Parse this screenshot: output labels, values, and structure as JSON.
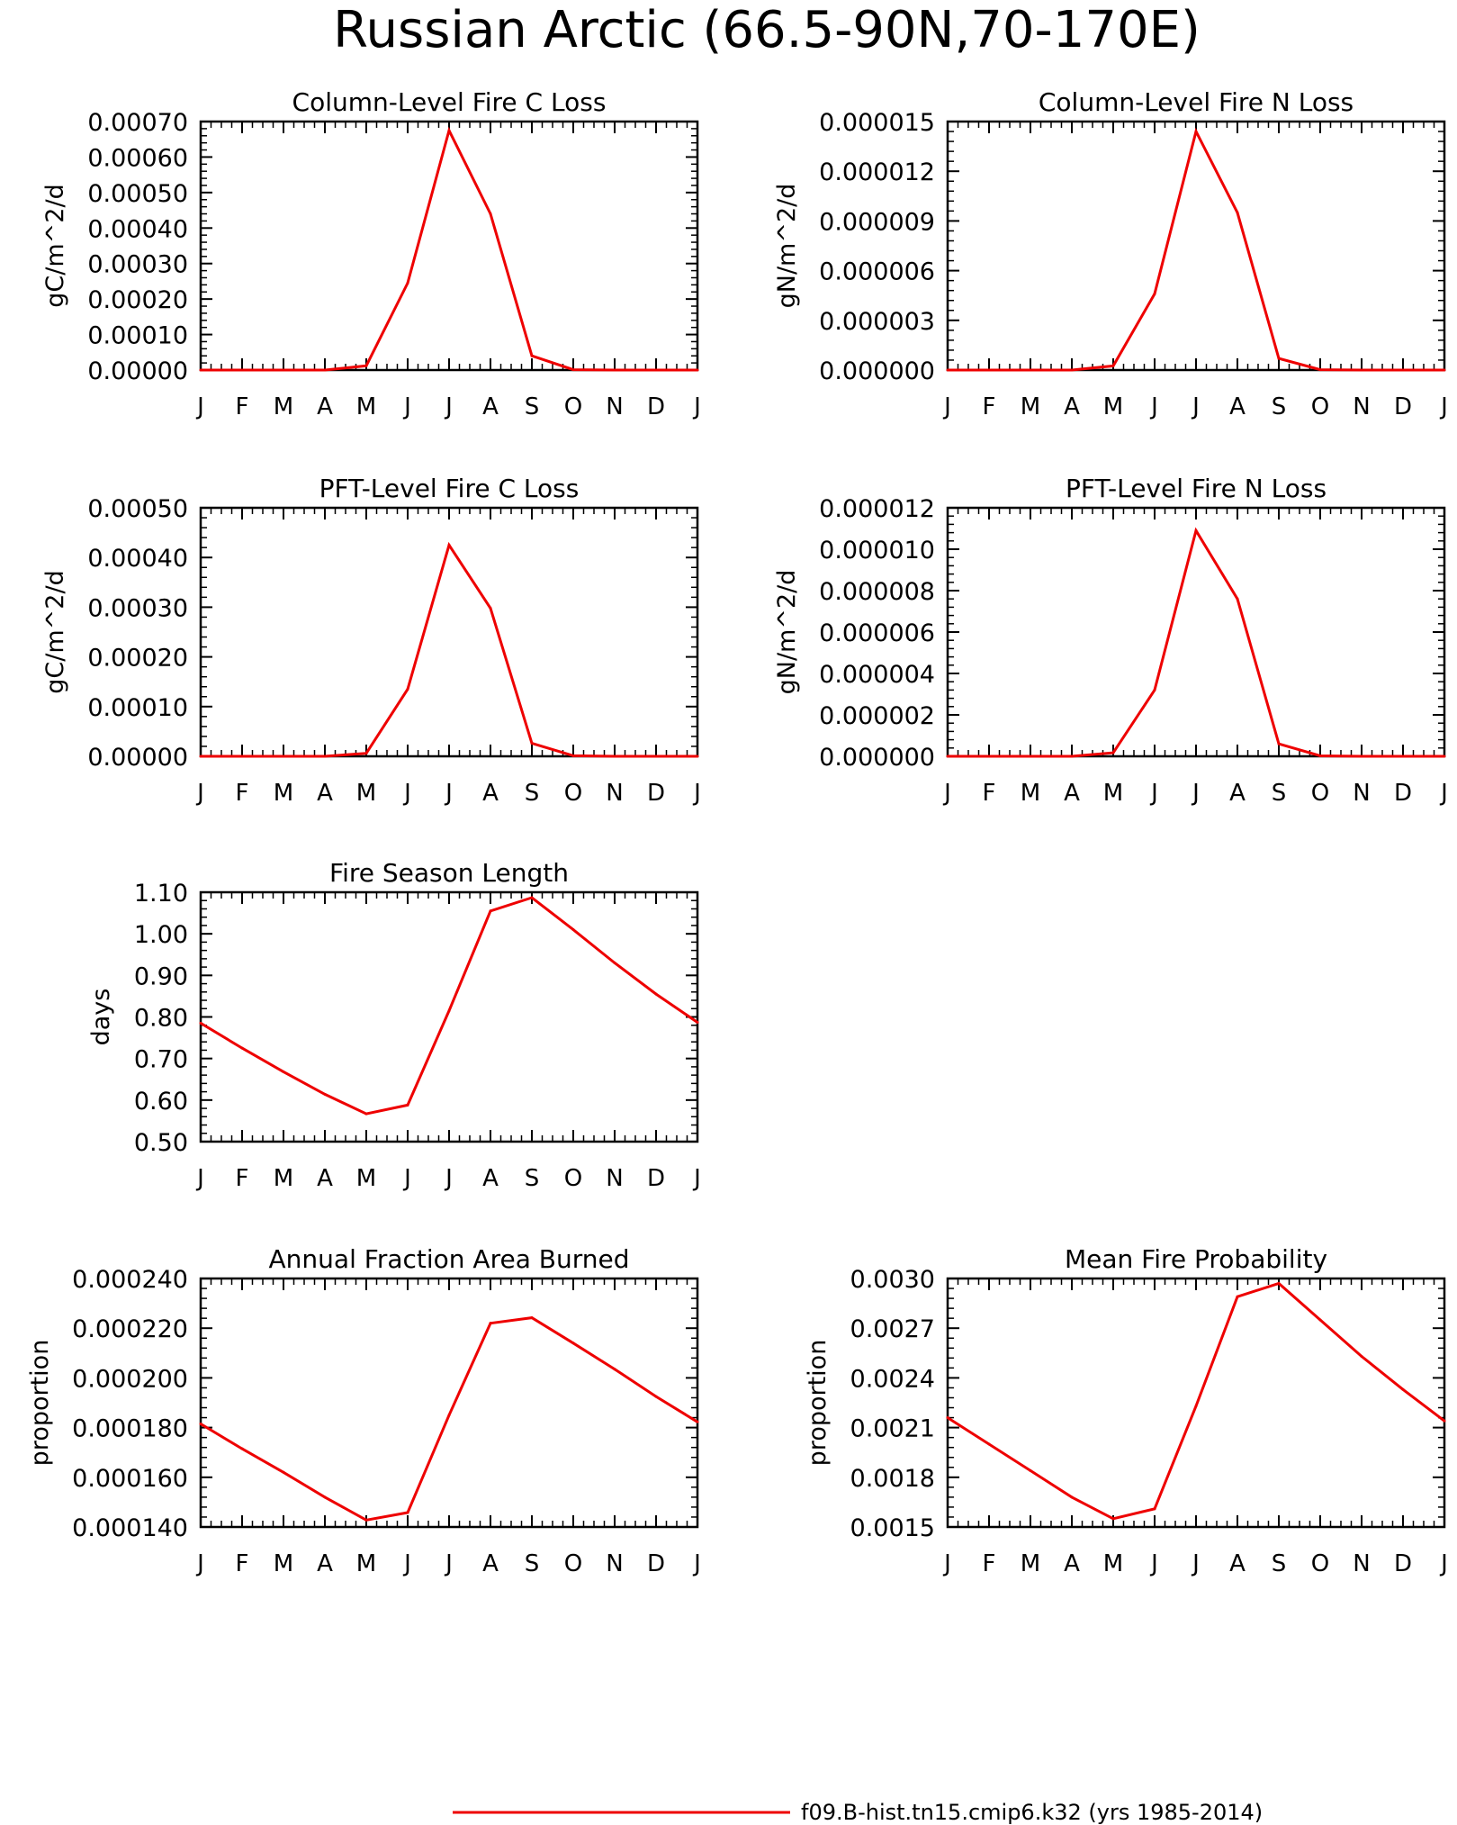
{
  "figure_title": "Russian Arctic (66.5-90N,70-170E)",
  "legend": {
    "label": "f09.B-hist.tn15.cmip6.k32 (yrs 1985-2014)",
    "color": "#ee0000"
  },
  "line_color": "#ee0000",
  "chart_data": [
    {
      "type": "line",
      "title": "Column-Level Fire C Loss",
      "ylabel": "gC/m^2/d",
      "categories": [
        "J",
        "F",
        "M",
        "A",
        "M",
        "J",
        "J",
        "A",
        "S",
        "O",
        "N",
        "D",
        "J"
      ],
      "yticks": [
        "0.00000",
        "0.00010",
        "0.00020",
        "0.00030",
        "0.00040",
        "0.00050",
        "0.00060",
        "0.00070"
      ],
      "ylim": [
        0,
        0.0007
      ],
      "values": [
        0,
        0,
        0,
        0,
        1.2e-05,
        0.000245,
        0.000675,
        0.00044,
        4e-05,
        1e-06,
        0,
        0,
        0
      ]
    },
    {
      "type": "line",
      "title": "Column-Level Fire N Loss",
      "ylabel": "gN/m^2/d",
      "categories": [
        "J",
        "F",
        "M",
        "A",
        "M",
        "J",
        "J",
        "A",
        "S",
        "O",
        "N",
        "D",
        "J"
      ],
      "yticks": [
        "0.000000",
        "0.000003",
        "0.000006",
        "0.000009",
        "0.000012",
        "0.000015"
      ],
      "ylim": [
        0,
        1.5e-05
      ],
      "values": [
        0,
        0,
        0,
        0,
        2.5e-07,
        4.6e-06,
        1.44e-05,
        9.5e-06,
        7e-07,
        2e-08,
        0,
        0,
        0
      ]
    },
    {
      "type": "line",
      "title": "PFT-Level Fire C Loss",
      "ylabel": "gC/m^2/d",
      "categories": [
        "J",
        "F",
        "M",
        "A",
        "M",
        "J",
        "J",
        "A",
        "S",
        "O",
        "N",
        "D",
        "J"
      ],
      "yticks": [
        "0.00000",
        "0.00010",
        "0.00020",
        "0.00030",
        "0.00040",
        "0.00050"
      ],
      "ylim": [
        0,
        0.0005
      ],
      "values": [
        0,
        0,
        0,
        0,
        6e-06,
        0.000135,
        0.000425,
        0.000298,
        2.6e-05,
        1e-06,
        0,
        0,
        0
      ]
    },
    {
      "type": "line",
      "title": "PFT-Level Fire N Loss",
      "ylabel": "gN/m^2/d",
      "categories": [
        "J",
        "F",
        "M",
        "A",
        "M",
        "J",
        "J",
        "A",
        "S",
        "O",
        "N",
        "D",
        "J"
      ],
      "yticks": [
        "0.000000",
        "0.000002",
        "0.000004",
        "0.000006",
        "0.000008",
        "0.000010",
        "0.000012"
      ],
      "ylim": [
        0,
        1.2e-05
      ],
      "values": [
        0,
        0,
        0,
        0,
        1.7e-07,
        3.2e-06,
        1.09e-05,
        7.6e-06,
        6e-07,
        2e-08,
        0,
        0,
        0
      ]
    },
    {
      "type": "line",
      "title": "Fire Season Length",
      "ylabel": "days",
      "categories": [
        "J",
        "F",
        "M",
        "A",
        "M",
        "J",
        "J",
        "A",
        "S",
        "O",
        "N",
        "D",
        "J"
      ],
      "yticks": [
        "0.50",
        "0.60",
        "0.70",
        "0.80",
        "0.90",
        "1.00",
        "1.10"
      ],
      "ylim": [
        0.5,
        1.1
      ],
      "values": [
        0.785,
        0.725,
        0.668,
        0.614,
        0.567,
        0.588,
        0.815,
        1.055,
        1.087,
        1.01,
        0.93,
        0.855,
        0.787
      ]
    },
    {
      "type": "line",
      "title": "Annual Fraction Area Burned",
      "ylabel": "proportion",
      "categories": [
        "J",
        "F",
        "M",
        "A",
        "M",
        "J",
        "J",
        "A",
        "S",
        "O",
        "N",
        "D",
        "J"
      ],
      "yticks": [
        "0.000140",
        "0.000160",
        "0.000180",
        "0.000200",
        "0.000220",
        "0.000240"
      ],
      "ylim": [
        0.00014,
        0.00024
      ],
      "values": [
        0.0001815,
        0.0001715,
        0.000162,
        0.000152,
        0.0001428,
        0.0001458,
        0.000185,
        0.000222,
        0.0002242,
        0.000214,
        0.0002035,
        0.0001925,
        0.0001823
      ]
    },
    {
      "type": "line",
      "title": "Mean Fire Probability",
      "ylabel": "proportion",
      "categories": [
        "J",
        "F",
        "M",
        "A",
        "M",
        "J",
        "J",
        "A",
        "S",
        "O",
        "N",
        "D",
        "J"
      ],
      "yticks": [
        "0.0015",
        "0.0018",
        "0.0021",
        "0.0024",
        "0.0027",
        "0.0030"
      ],
      "ylim": [
        0.0015,
        0.003
      ],
      "values": [
        0.00216,
        0.002,
        0.00184,
        0.00168,
        0.00155,
        0.00161,
        0.00223,
        0.00289,
        0.00297,
        0.00275,
        0.00253,
        0.00233,
        0.00214
      ]
    }
  ]
}
